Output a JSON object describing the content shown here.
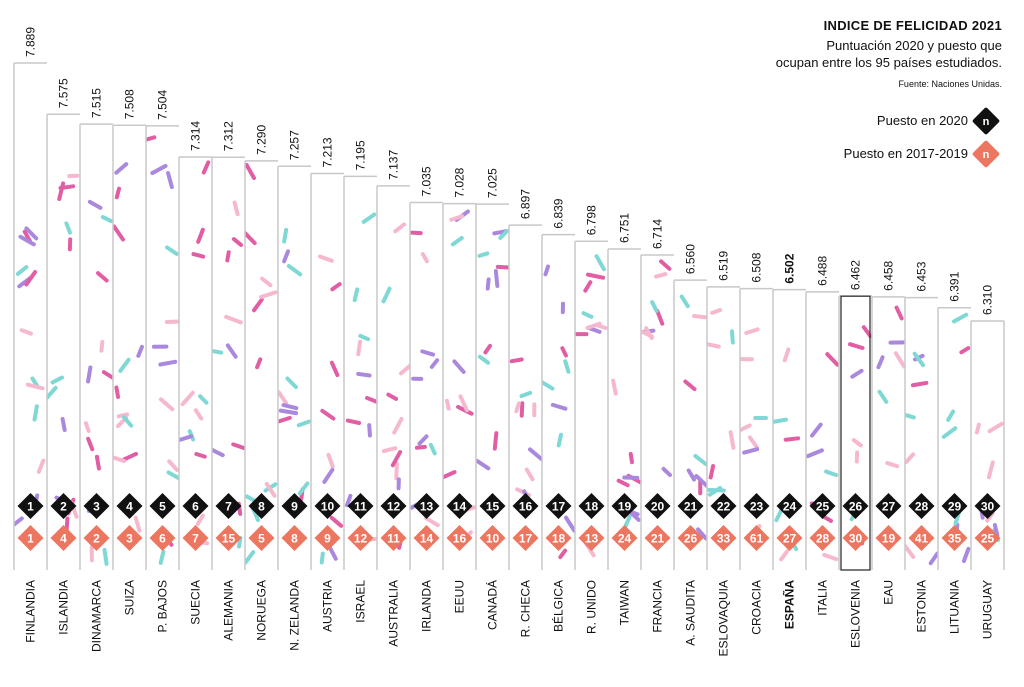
{
  "legend": {
    "title": "INDICE DE FELICIDAD 2021",
    "subtitle_line1": "Puntuación 2020 y puesto que",
    "subtitle_line2": "ocupan entre los 95 países estudiados.",
    "source": "Fuente: Naciones Unidas.",
    "rank2020_label": "Puesto en 2020",
    "rank1719_label": "Puesto en 2017-2019",
    "marker_letter": "n"
  },
  "colors": {
    "rank2020": "#111111",
    "rank1719": "#ec7660",
    "bar_line": "#c8c8c8",
    "highlight_border": "#333333",
    "sprinkles": [
      "#e25ea4",
      "#7fd8d4",
      "#a988de",
      "#f6b8cf"
    ]
  },
  "chart_data": {
    "type": "bar",
    "categories": [
      "FINLANDIA",
      "ISLANDIA",
      "DINAMARCA",
      "SUIZA",
      "P. BAJOS",
      "SUECIA",
      "ALEMANIA",
      "NORUEGA",
      "N. ZELANDA",
      "AUSTRIA",
      "ISRAEL",
      "AUSTRALIA",
      "IRLANDA",
      "EEUU",
      "CANADÁ",
      "R. CHECA",
      "BÉLGICA",
      "R. UNIDO",
      "TAIWAN",
      "FRANCIA",
      "A. SAUDITA",
      "ESLOVAQUIA",
      "CROACIA",
      "ESPAÑA",
      "ITALIA",
      "ESLOVENIA",
      "EAU",
      "ESTONIA",
      "LITUANIA",
      "URUGUAY"
    ],
    "values": [
      7.889,
      7.575,
      7.515,
      7.508,
      7.504,
      7.314,
      7.312,
      7.29,
      7.257,
      7.213,
      7.195,
      7.137,
      7.035,
      7.028,
      7.025,
      6.897,
      6.839,
      6.798,
      6.751,
      6.714,
      6.56,
      6.519,
      6.508,
      6.502,
      6.488,
      6.462,
      6.458,
      6.453,
      6.391,
      6.31
    ],
    "value_labels": [
      "7.889",
      "7.575",
      "7.515",
      "7.508",
      "7.504",
      "7.314",
      "7.312",
      "7.290",
      "7.257",
      "7.213",
      "7.195",
      "7.137",
      "7.035",
      "7.028",
      "7.025",
      "6.897",
      "6.839",
      "6.798",
      "6.751",
      "6.714",
      "6.560",
      "6.519",
      "6.508",
      "6.502",
      "6.488",
      "6.462",
      "6.458",
      "6.453",
      "6.391",
      "6.310"
    ],
    "rank_2020": [
      "1",
      "2",
      "3",
      "4",
      "5",
      "6",
      "7",
      "8",
      "9",
      "10",
      "11",
      "12",
      "13",
      "14",
      "15",
      "16",
      "17",
      "18",
      "19",
      "20",
      "21",
      "22",
      "23",
      "24",
      "25",
      "26",
      "27",
      "28",
      "29",
      "30"
    ],
    "rank_2017_2019": [
      "1",
      "4",
      "2",
      "3",
      "6",
      "7",
      "15",
      "5",
      "8",
      "9",
      "12",
      "11",
      "14",
      "16",
      "10",
      "17",
      "18",
      "13",
      "24",
      "21",
      "26",
      "33",
      "61",
      "27",
      "28",
      "30",
      "19",
      "41",
      "35",
      "25"
    ],
    "highlight_bold": "ESPAÑA",
    "highlight_box": "ESLOVENIA",
    "grid": false
  }
}
